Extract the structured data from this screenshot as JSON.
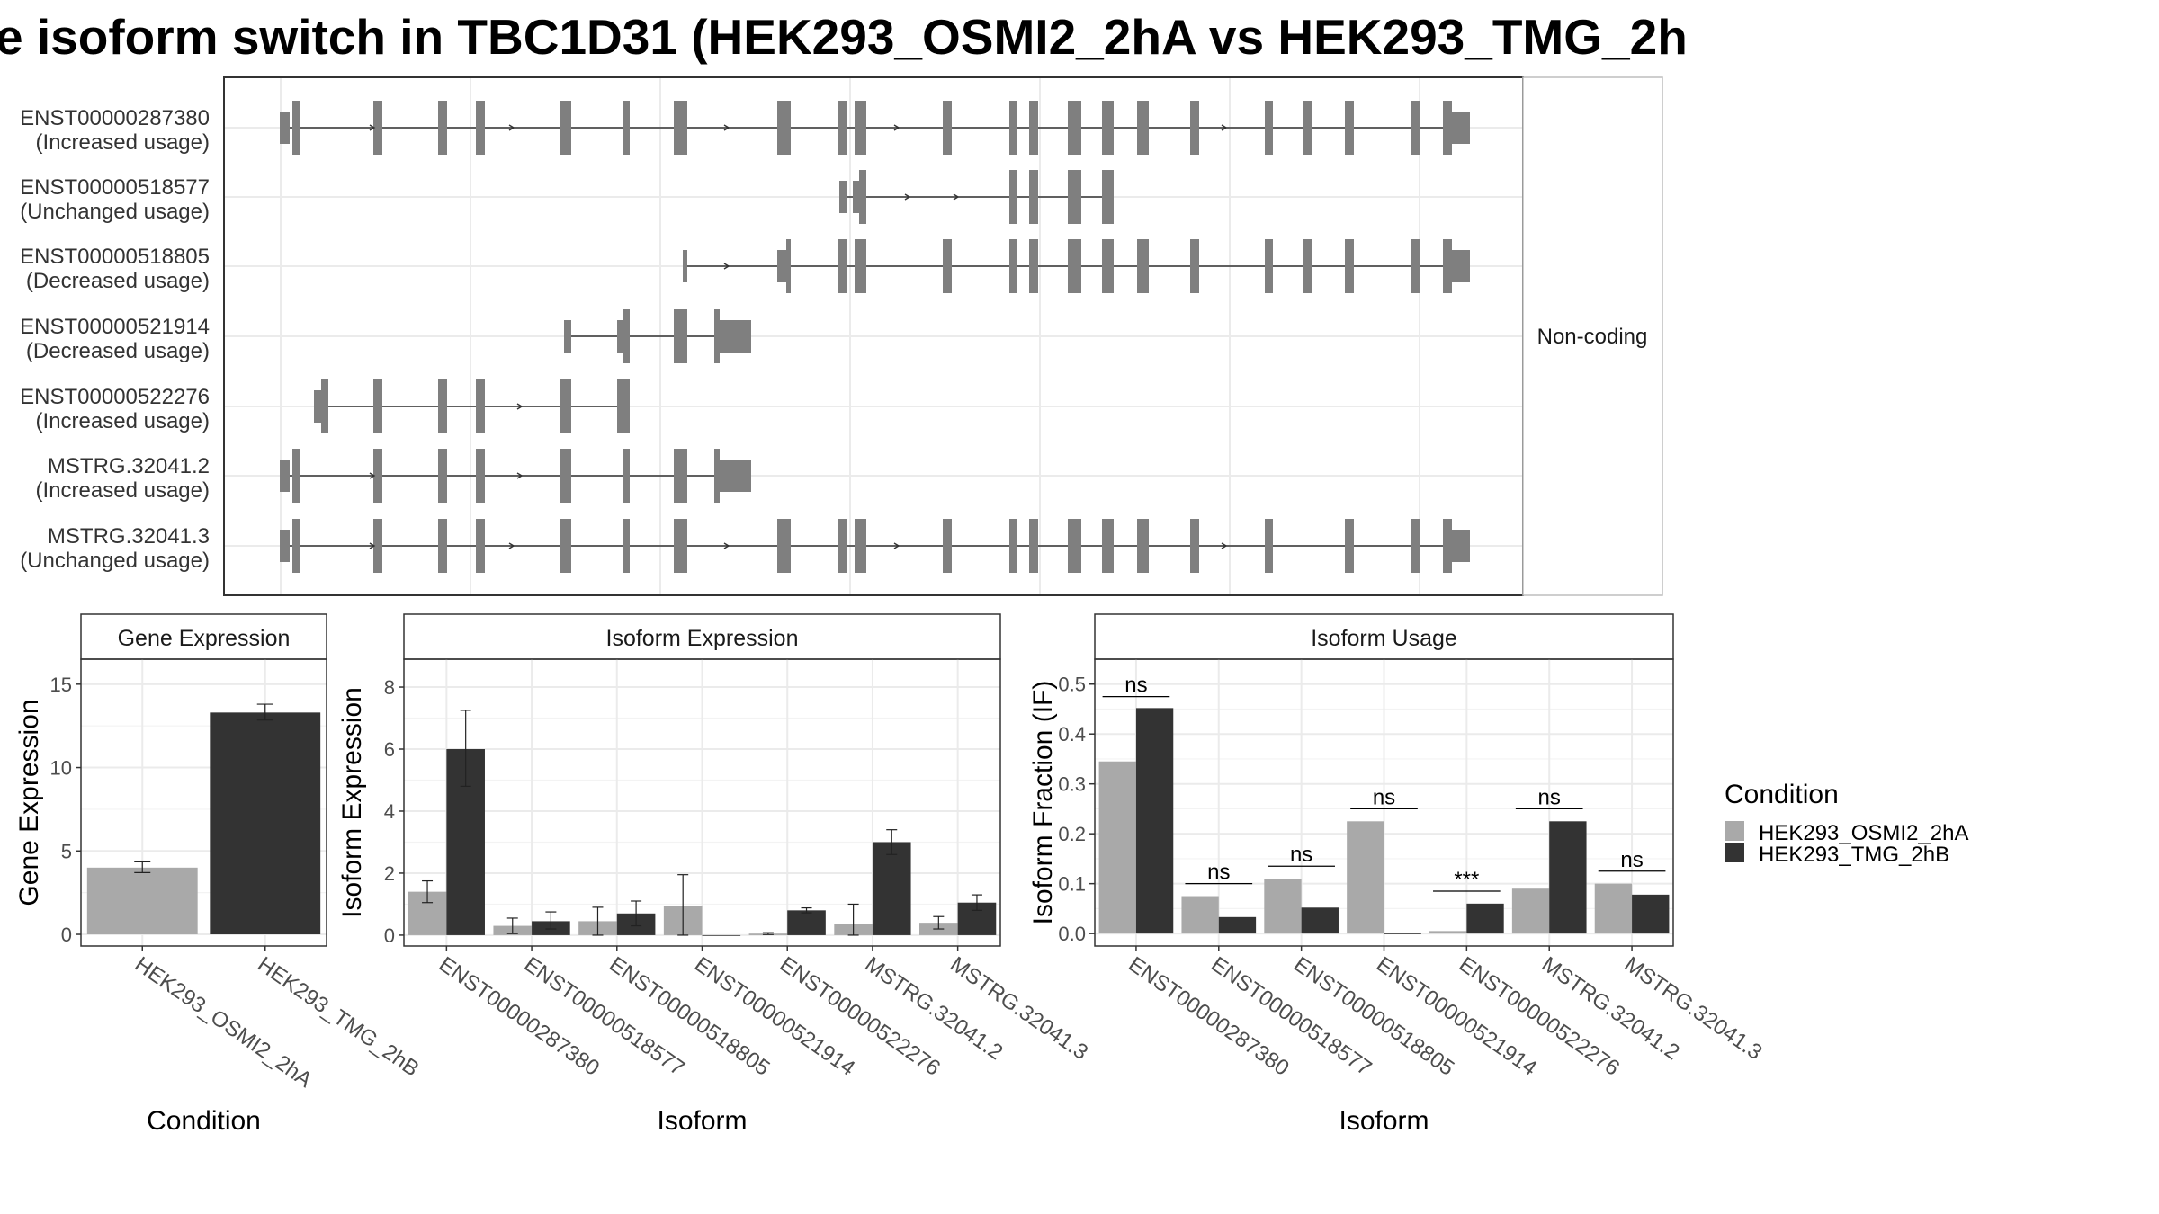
{
  "title": "e isoform switch in TBC1D31 (HEK293_OSMI2_2hA vs HEK293_TMG_2h",
  "colors": {
    "cond1": "#a9a9a9",
    "cond2": "#333333",
    "exon": "#7f7f7f"
  },
  "legend": {
    "title": "Condition",
    "items": [
      {
        "label": "HEK293_OSMI2_2hA",
        "color": "#a9a9a9"
      },
      {
        "label": "HEK293_TMG_2hB",
        "color": "#333333"
      }
    ]
  },
  "structure": {
    "side_label": "Non-coding",
    "isoforms": [
      {
        "id": "ENST00000287380",
        "usage": "(Increased usage)",
        "exons": [
          [
            311,
            322,
            0.6
          ],
          [
            325,
            333,
            1
          ],
          [
            415,
            425,
            1
          ],
          [
            487,
            497,
            1
          ],
          [
            529,
            539,
            1
          ],
          [
            623,
            635,
            1
          ],
          [
            692,
            700,
            1
          ],
          [
            749,
            764,
            1
          ],
          [
            864,
            879,
            1
          ],
          [
            931,
            941,
            1
          ],
          [
            950,
            963,
            1
          ],
          [
            1048,
            1058,
            1
          ],
          [
            1122,
            1131,
            1
          ],
          [
            1144,
            1154,
            1
          ],
          [
            1187,
            1202,
            1
          ],
          [
            1225,
            1238,
            1
          ],
          [
            1264,
            1277,
            1
          ],
          [
            1323,
            1333,
            1
          ],
          [
            1406,
            1415,
            1
          ],
          [
            1448,
            1458,
            1
          ],
          [
            1495,
            1505,
            1
          ],
          [
            1568,
            1578,
            1
          ],
          [
            1604,
            1614,
            1
          ],
          [
            1614,
            1634,
            0.6
          ]
        ],
        "arrows": [
          416,
          571,
          810,
          999,
          1363
        ]
      },
      {
        "id": "ENST00000518577",
        "usage": "(Unchanged usage)",
        "exons": [
          [
            933,
            941,
            0.6
          ],
          [
            948,
            955,
            0.6
          ],
          [
            955,
            963,
            1
          ],
          [
            1122,
            1131,
            1
          ],
          [
            1144,
            1154,
            1
          ],
          [
            1187,
            1202,
            1
          ],
          [
            1225,
            1238,
            1
          ]
        ],
        "arrows": [
          1011,
          1065
        ]
      },
      {
        "id": "ENST00000518805",
        "usage": "(Decreased usage)",
        "exons": [
          [
            759,
            764,
            0.6
          ],
          [
            864,
            874,
            0.6
          ],
          [
            874,
            879,
            1
          ],
          [
            931,
            941,
            1
          ],
          [
            950,
            963,
            1
          ],
          [
            1048,
            1058,
            1
          ],
          [
            1122,
            1131,
            1
          ],
          [
            1144,
            1154,
            1
          ],
          [
            1187,
            1202,
            1
          ],
          [
            1225,
            1238,
            1
          ],
          [
            1264,
            1277,
            1
          ],
          [
            1323,
            1333,
            1
          ],
          [
            1406,
            1415,
            1
          ],
          [
            1448,
            1458,
            1
          ],
          [
            1495,
            1505,
            1
          ],
          [
            1568,
            1578,
            1
          ],
          [
            1604,
            1614,
            1
          ],
          [
            1614,
            1634,
            0.6
          ]
        ],
        "arrows": [
          810
        ]
      },
      {
        "id": "ENST00000521914",
        "usage": "(Decreased usage)",
        "exons": [
          [
            627,
            635,
            0.6
          ],
          [
            686,
            692,
            0.6
          ],
          [
            692,
            700,
            1
          ],
          [
            749,
            764,
            1
          ],
          [
            794,
            800,
            1
          ],
          [
            800,
            835,
            0.6
          ]
        ],
        "arrows": []
      },
      {
        "id": "ENST00000522276",
        "usage": "(Increased usage)",
        "exons": [
          [
            349,
            357,
            0.6
          ],
          [
            357,
            365,
            1
          ],
          [
            415,
            425,
            1
          ],
          [
            487,
            497,
            1
          ],
          [
            529,
            539,
            1
          ],
          [
            623,
            635,
            1
          ],
          [
            686,
            700,
            1
          ]
        ],
        "arrows": [
          580
        ]
      },
      {
        "id": "MSTRG.32041.2",
        "usage": "(Increased usage)",
        "exons": [
          [
            311,
            322,
            0.6
          ],
          [
            325,
            333,
            1
          ],
          [
            415,
            425,
            1
          ],
          [
            487,
            497,
            1
          ],
          [
            529,
            539,
            1
          ],
          [
            623,
            635,
            1
          ],
          [
            692,
            700,
            1
          ],
          [
            749,
            764,
            1
          ],
          [
            794,
            800,
            1
          ],
          [
            800,
            835,
            0.6
          ]
        ],
        "arrows": [
          416,
          580
        ]
      },
      {
        "id": "MSTRG.32041.3",
        "usage": "(Unchanged usage)",
        "exons": [
          [
            311,
            322,
            0.6
          ],
          [
            325,
            333,
            1
          ],
          [
            415,
            425,
            1
          ],
          [
            487,
            497,
            1
          ],
          [
            529,
            539,
            1
          ],
          [
            623,
            635,
            1
          ],
          [
            692,
            700,
            1
          ],
          [
            749,
            764,
            1
          ],
          [
            864,
            879,
            1
          ],
          [
            931,
            941,
            1
          ],
          [
            950,
            963,
            1
          ],
          [
            1048,
            1058,
            1
          ],
          [
            1122,
            1131,
            1
          ],
          [
            1144,
            1154,
            1
          ],
          [
            1187,
            1202,
            1
          ],
          [
            1225,
            1238,
            1
          ],
          [
            1264,
            1277,
            1
          ],
          [
            1323,
            1333,
            1
          ],
          [
            1406,
            1415,
            1
          ],
          [
            1495,
            1505,
            1
          ],
          [
            1568,
            1578,
            1
          ],
          [
            1604,
            1614,
            1
          ],
          [
            1614,
            1634,
            0.6
          ]
        ],
        "arrows": [
          416,
          571,
          810,
          999,
          1363
        ]
      }
    ]
  },
  "chart_data": [
    {
      "type": "bar",
      "title": "Gene Expression",
      "xlabel": "Condition",
      "ylabel": "Gene Expression",
      "ylim": [
        -0.7,
        16.5
      ],
      "yticks": [
        0,
        5,
        10,
        15
      ],
      "categories": [
        "HEK293_OSMI2_2hA",
        "HEK293_TMG_2hB"
      ],
      "values": [
        4.0,
        13.3
      ],
      "errors": [
        [
          3.7,
          4.35
        ],
        [
          12.85,
          13.8
        ]
      ]
    },
    {
      "type": "bar",
      "title": "Isoform Expression",
      "xlabel": "Isoform",
      "ylabel": "Isoform Expression",
      "ylim": [
        -0.35,
        8.9
      ],
      "yticks": [
        0,
        2,
        4,
        6,
        8
      ],
      "categories": [
        "ENST00000287380",
        "ENST00000518577",
        "ENST00000518805",
        "ENST00000521914",
        "ENST00000522276",
        "MSTRG.32041.2",
        "MSTRG.32041.3"
      ],
      "series": [
        {
          "name": "HEK293_OSMI2_2hA",
          "values": [
            1.4,
            0.3,
            0.45,
            0.95,
            0.05,
            0.35,
            0.4
          ],
          "errors": [
            [
              1.05,
              1.75
            ],
            [
              0.05,
              0.55
            ],
            [
              0.0,
              0.9
            ],
            [
              0.0,
              1.95
            ],
            [
              0.02,
              0.08
            ],
            [
              0.0,
              1.0
            ],
            [
              0.2,
              0.6
            ]
          ]
        },
        {
          "name": "HEK293_TMG_2hB",
          "values": [
            6.0,
            0.45,
            0.7,
            0.0,
            0.8,
            3.0,
            1.05
          ],
          "errors": [
            [
              4.8,
              7.25
            ],
            [
              0.2,
              0.75
            ],
            [
              0.3,
              1.1
            ],
            [
              0.0,
              0.0
            ],
            [
              0.72,
              0.88
            ],
            [
              2.6,
              3.4
            ],
            [
              0.8,
              1.3
            ]
          ]
        }
      ]
    },
    {
      "type": "bar",
      "title": "Isoform Usage",
      "xlabel": "Isoform",
      "ylabel": "Isoform Fraction (IF)",
      "ylim": [
        -0.025,
        0.55
      ],
      "yticks": [
        0.0,
        0.1,
        0.2,
        0.3,
        0.4,
        0.5
      ],
      "categories": [
        "ENST00000287380",
        "ENST00000518577",
        "ENST00000518805",
        "ENST00000521914",
        "ENST00000522276",
        "MSTRG.32041.2",
        "MSTRG.32041.3"
      ],
      "series": [
        {
          "name": "HEK293_OSMI2_2hA",
          "values": [
            0.345,
            0.075,
            0.11,
            0.225,
            0.005,
            0.09,
            0.1
          ]
        },
        {
          "name": "HEK293_TMG_2hB",
          "values": [
            0.452,
            0.033,
            0.052,
            0.0,
            0.06,
            0.225,
            0.078
          ]
        }
      ],
      "significance": [
        {
          "label": "ns",
          "y": 0.475
        },
        {
          "label": "ns",
          "y": 0.1
        },
        {
          "label": "ns",
          "y": 0.135
        },
        {
          "label": "ns",
          "y": 0.25
        },
        {
          "label": "***",
          "y": 0.085
        },
        {
          "label": "ns",
          "y": 0.25
        },
        {
          "label": "ns",
          "y": 0.125
        }
      ]
    }
  ]
}
